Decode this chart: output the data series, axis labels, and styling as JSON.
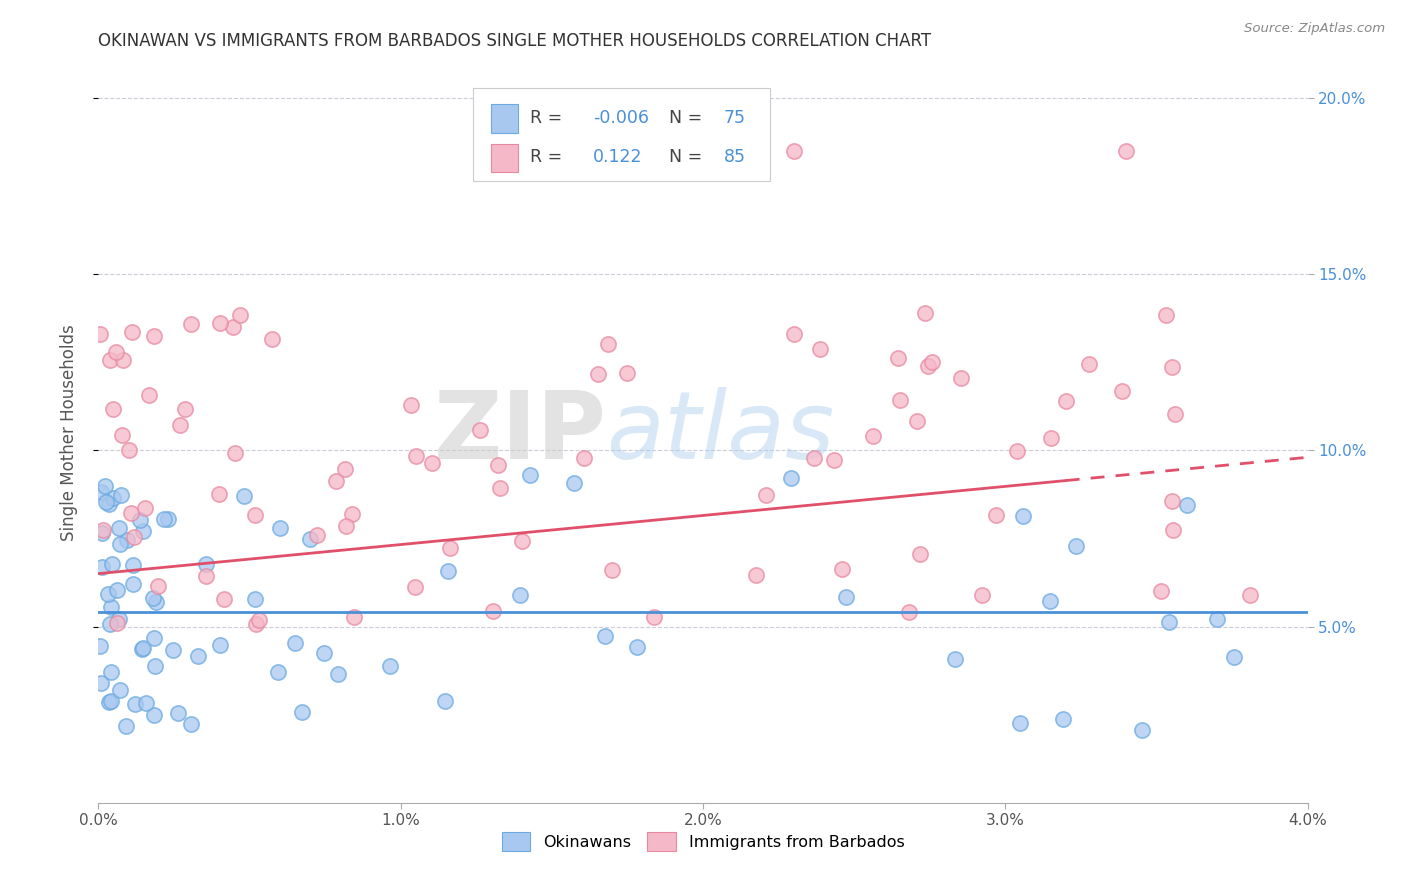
{
  "title": "OKINAWAN VS IMMIGRANTS FROM BARBADOS SINGLE MOTHER HOUSEHOLDS CORRELATION CHART",
  "source": "Source: ZipAtlas.com",
  "ylabel": "Single Mother Households",
  "xlim": [
    0.0,
    0.04
  ],
  "ylim": [
    0.0,
    0.21
  ],
  "x_tick_pos": [
    0.0,
    0.01,
    0.02,
    0.03,
    0.04
  ],
  "x_tick_labels": [
    "0.0%",
    "1.0%",
    "2.0%",
    "3.0%",
    "4.0%"
  ],
  "y_tick_pos": [
    0.05,
    0.1,
    0.15,
    0.2
  ],
  "y_tick_labels": [
    "5.0%",
    "10.0%",
    "15.0%",
    "20.0%"
  ],
  "blue_R": -0.006,
  "blue_N": 75,
  "pink_R": 0.122,
  "pink_N": 85,
  "blue_dot_color": "#a8c8f0",
  "blue_edge_color": "#6aaae0",
  "pink_dot_color": "#f5b8c8",
  "pink_edge_color": "#e888a0",
  "blue_line_color": "#4a90d9",
  "pink_line_color": "#e0506a",
  "legend_blue_label": "Okinawans",
  "legend_pink_label": "Immigrants from Barbados",
  "watermark_zip": "ZIP",
  "watermark_atlas": "atlas",
  "grid_color": "#ccccdd",
  "title_color": "#333333",
  "right_tick_color": "#4a90d9"
}
